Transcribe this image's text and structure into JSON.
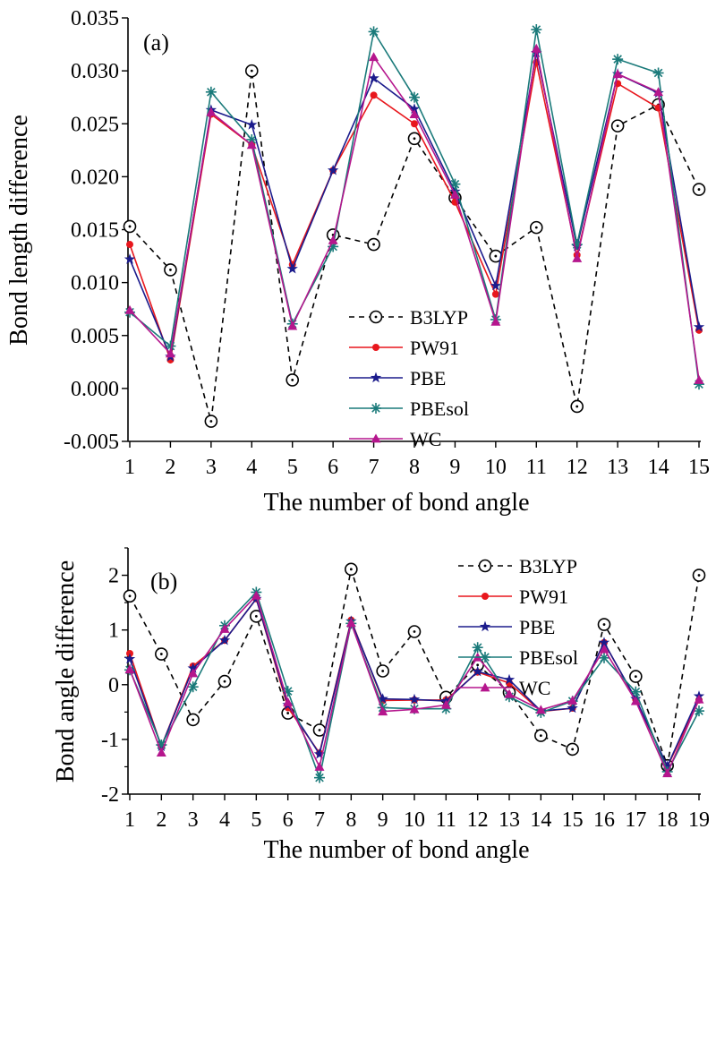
{
  "chart_data": [
    {
      "type": "line",
      "panel_label": "(a)",
      "xlabel": "The number of bond angle",
      "ylabel": "Bond length difference",
      "x": [
        1,
        2,
        3,
        4,
        5,
        6,
        7,
        8,
        9,
        10,
        11,
        12,
        13,
        14,
        15
      ],
      "ylim": [
        -0.005,
        0.035
      ],
      "yticks": [
        "-0.005",
        "0.000",
        "0.005",
        "0.010",
        "0.015",
        "0.020",
        "0.025",
        "0.030",
        "0.035"
      ],
      "legend_position": "center",
      "series": [
        {
          "name": "B3LYP",
          "color": "#000000",
          "marker": "open-circle",
          "dashed": true,
          "values": [
            0.0153,
            0.0112,
            -0.0031,
            0.03,
            0.0008,
            0.0145,
            0.0136,
            0.0236,
            0.018,
            0.0125,
            0.0152,
            -0.0017,
            0.0248,
            0.0268,
            0.0188
          ]
        },
        {
          "name": "PW91",
          "color": "#e8171d",
          "marker": "dot",
          "dashed": false,
          "values": [
            0.0136,
            0.0027,
            0.0259,
            0.023,
            0.0117,
            0.0206,
            0.0277,
            0.025,
            0.0176,
            0.0089,
            0.0308,
            0.0126,
            0.0288,
            0.0265,
            0.0055
          ]
        },
        {
          "name": "PBE",
          "color": "#1b1b8c",
          "marker": "star",
          "dashed": false,
          "values": [
            0.0122,
            0.003,
            0.0263,
            0.0249,
            0.0113,
            0.0206,
            0.0293,
            0.0264,
            0.0186,
            0.0097,
            0.0317,
            0.0134,
            0.0297,
            0.0279,
            0.0058
          ]
        },
        {
          "name": "PBEsol",
          "color": "#1a7a7a",
          "marker": "asterisk",
          "dashed": false,
          "values": [
            0.0072,
            0.004,
            0.028,
            0.0235,
            0.0061,
            0.0134,
            0.0337,
            0.0275,
            0.0193,
            0.0065,
            0.0339,
            0.0136,
            0.0311,
            0.0298,
            0.0004
          ]
        },
        {
          "name": "WC",
          "color": "#b5168d",
          "marker": "triangle",
          "dashed": false,
          "values": [
            0.0074,
            0.0033,
            0.0261,
            0.023,
            0.0059,
            0.014,
            0.0313,
            0.0259,
            0.0183,
            0.0063,
            0.0321,
            0.0123,
            0.0297,
            0.028,
            0.0008
          ]
        }
      ]
    },
    {
      "type": "line",
      "panel_label": "(b)",
      "xlabel": "The number of bond angle",
      "ylabel": "Bond angle difference",
      "x": [
        1,
        2,
        3,
        4,
        5,
        6,
        7,
        8,
        9,
        10,
        11,
        12,
        13,
        14,
        15,
        16,
        17,
        18,
        19
      ],
      "ylim": [
        -2,
        2.5
      ],
      "yticks": [
        "-2",
        "-1",
        "0",
        "1",
        "2"
      ],
      "legend_position": "top-right",
      "series": [
        {
          "name": "B3LYP",
          "color": "#000000",
          "marker": "open-circle",
          "dashed": true,
          "values": [
            1.62,
            0.56,
            -0.64,
            0.06,
            1.25,
            -0.52,
            -0.83,
            2.11,
            0.25,
            0.97,
            -0.23,
            0.36,
            -0.14,
            -0.93,
            -1.18,
            1.1,
            0.15,
            -1.48,
            2.0
          ]
        },
        {
          "name": "PW91",
          "color": "#e8171d",
          "marker": "dot",
          "dashed": false,
          "values": [
            0.57,
            -1.13,
            0.34,
            0.81,
            1.57,
            -0.42,
            -1.25,
            1.18,
            -0.29,
            -0.28,
            -0.28,
            0.23,
            0.03,
            -0.49,
            -0.43,
            0.77,
            -0.27,
            -1.5,
            -0.28
          ]
        },
        {
          "name": "PBE",
          "color": "#1b1b8c",
          "marker": "star",
          "dashed": false,
          "values": [
            0.47,
            -1.13,
            0.3,
            0.81,
            1.57,
            -0.37,
            -1.27,
            1.16,
            -0.26,
            -0.27,
            -0.3,
            0.24,
            0.09,
            -0.48,
            -0.43,
            0.77,
            -0.26,
            -1.49,
            -0.21
          ]
        },
        {
          "name": "PBEsol",
          "color": "#1a7a7a",
          "marker": "asterisk",
          "dashed": false,
          "values": [
            0.27,
            -1.1,
            -0.04,
            1.08,
            1.69,
            -0.12,
            -1.7,
            1.12,
            -0.42,
            -0.44,
            -0.44,
            0.68,
            -0.22,
            -0.51,
            -0.3,
            0.49,
            -0.13,
            -1.59,
            -0.48
          ]
        },
        {
          "name": "WC",
          "color": "#b5168d",
          "marker": "triangle",
          "dashed": false,
          "values": [
            0.28,
            -1.24,
            0.21,
            1.02,
            1.63,
            -0.32,
            -1.5,
            1.13,
            -0.49,
            -0.45,
            -0.37,
            0.5,
            -0.17,
            -0.46,
            -0.29,
            0.65,
            -0.3,
            -1.62,
            -0.27
          ]
        }
      ]
    }
  ]
}
